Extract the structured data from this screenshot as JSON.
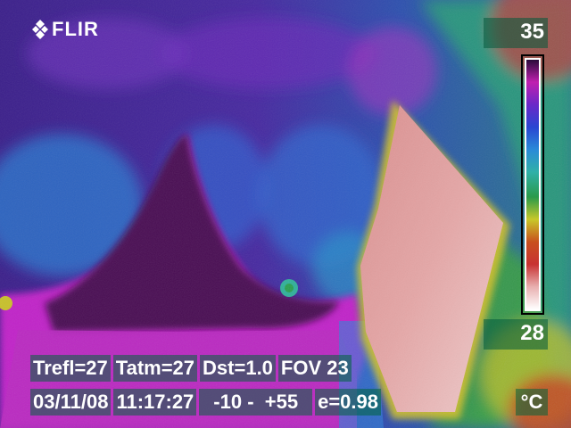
{
  "camera": {
    "brand": "FLIR"
  },
  "scale": {
    "max": "35",
    "min": "28",
    "unit": "°C"
  },
  "parameters": {
    "trefl": "Trefl=27",
    "tatm": "Tatm=27",
    "dst": "Dst=1.0",
    "fov": "FOV 23"
  },
  "status": {
    "date": "03/11/08",
    "time": "11:17:27",
    "range": "-10 -  +55",
    "emissivity": "e=0.98"
  },
  "palette": {
    "colorbar_colors": [
      "#2a0a3a",
      "#c020b0",
      "#6a28c8",
      "#2a46d2",
      "#2a8ad8",
      "#30b0a8",
      "#2a9a4a",
      "#c8c82a",
      "#c8501e",
      "#c83232",
      "#e8b0b0",
      "#ffffff"
    ]
  }
}
